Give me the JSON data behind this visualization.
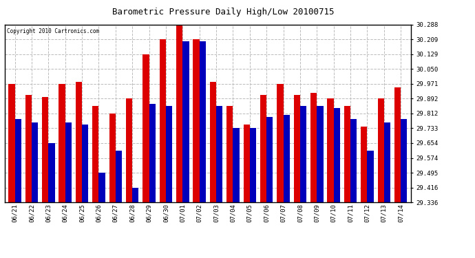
{
  "title": "Barometric Pressure Daily High/Low 20100715",
  "copyright": "Copyright 2010 Cartronics.com",
  "dates": [
    "06/21",
    "06/22",
    "06/23",
    "06/24",
    "06/25",
    "06/26",
    "06/27",
    "06/28",
    "06/29",
    "06/30",
    "07/01",
    "07/02",
    "07/03",
    "07/04",
    "07/05",
    "07/06",
    "07/07",
    "07/08",
    "07/09",
    "07/10",
    "07/11",
    "07/12",
    "07/13",
    "07/14"
  ],
  "highs": [
    29.971,
    29.912,
    29.902,
    29.971,
    29.981,
    29.852,
    29.812,
    29.892,
    30.129,
    30.209,
    30.288,
    30.209,
    29.981,
    29.852,
    29.753,
    29.912,
    29.971,
    29.912,
    29.922,
    29.892,
    29.852,
    29.743,
    29.892,
    29.951
  ],
  "lows": [
    29.783,
    29.763,
    29.654,
    29.763,
    29.753,
    29.495,
    29.614,
    29.416,
    29.862,
    29.852,
    30.199,
    30.199,
    29.852,
    29.733,
    29.733,
    29.793,
    29.803,
    29.853,
    29.853,
    29.843,
    29.783,
    29.614,
    29.763,
    29.783
  ],
  "ymin": 29.336,
  "ymax": 30.288,
  "yticks": [
    29.336,
    29.416,
    29.495,
    29.574,
    29.654,
    29.733,
    29.812,
    29.892,
    29.971,
    30.05,
    30.129,
    30.209,
    30.288
  ],
  "high_color": "#dd0000",
  "low_color": "#0000bb",
  "bg_color": "#ffffff",
  "grid_color": "#bbbbbb",
  "bar_width": 0.38,
  "figwidth": 6.9,
  "figheight": 3.75,
  "dpi": 100
}
